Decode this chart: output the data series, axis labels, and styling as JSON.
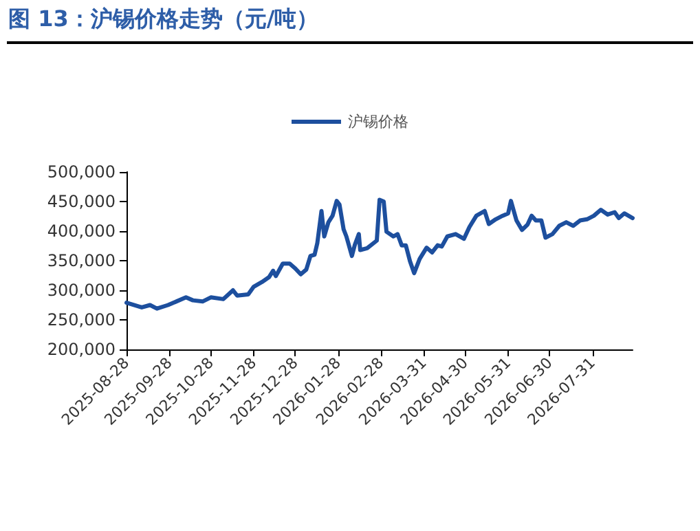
{
  "chart_data": {
    "type": "line",
    "title": "图 13：沪锡价格走势（元/吨）",
    "legend": "top",
    "grid": false,
    "marker": "none",
    "line_style": "solid",
    "xlim": [
      "2025-08-28",
      "2026-08-29"
    ],
    "xticks": [
      "2025-08-28",
      "2025-09-28",
      "2025-10-28",
      "2025-11-28",
      "2025-12-28",
      "2026-01-28",
      "2026-02-28",
      "2026-03-31",
      "2026-04-30",
      "2026-05-31",
      "2026-06-30",
      "2026-07-31"
    ],
    "ylim": [
      200000,
      500000
    ],
    "yticks": [
      {
        "value": 200000,
        "label": "200,000"
      },
      {
        "value": 250000,
        "label": "250,000"
      },
      {
        "value": 300000,
        "label": "300,000"
      },
      {
        "value": 350000,
        "label": "350,000"
      },
      {
        "value": 400000,
        "label": "400,000"
      },
      {
        "value": 450000,
        "label": "450,000"
      },
      {
        "value": 500000,
        "label": "500,000"
      }
    ],
    "x": [
      "2025-08-28",
      "2025-09-08",
      "2025-09-14",
      "2025-09-19",
      "2025-09-27",
      "2025-10-10",
      "2025-10-15",
      "2025-10-22",
      "2025-10-28",
      "2025-11-06",
      "2025-11-13",
      "2025-11-16",
      "2025-11-24",
      "2025-11-28",
      "2025-12-04",
      "2025-12-09",
      "2025-12-12",
      "2025-12-14",
      "2025-12-19",
      "2025-12-24",
      "2025-12-28",
      "2026-01-01",
      "2026-01-05",
      "2026-01-08",
      "2026-01-11",
      "2026-01-13",
      "2026-01-16",
      "2026-01-18",
      "2026-01-21",
      "2026-01-24",
      "2026-01-27",
      "2026-01-29",
      "2026-02-01",
      "2026-02-03",
      "2026-02-07",
      "2026-02-09",
      "2026-02-12",
      "2026-02-13",
      "2026-02-18",
      "2026-02-25",
      "2026-02-27",
      "2026-03-02",
      "2026-03-04",
      "2026-03-09",
      "2026-03-12",
      "2026-03-15",
      "2026-03-18",
      "2026-03-21",
      "2026-03-24",
      "2026-03-28",
      "2026-04-02",
      "2026-04-06",
      "2026-04-10",
      "2026-04-13",
      "2026-04-17",
      "2026-04-23",
      "2026-04-29",
      "2026-05-03",
      "2026-05-08",
      "2026-05-14",
      "2026-05-17",
      "2026-05-22",
      "2026-05-27",
      "2026-05-31",
      "2026-06-02",
      "2026-06-06",
      "2026-06-10",
      "2026-06-14",
      "2026-06-17",
      "2026-06-20",
      "2026-06-24",
      "2026-06-27",
      "2026-07-02",
      "2026-07-07",
      "2026-07-12",
      "2026-07-17",
      "2026-07-22",
      "2026-07-27",
      "2026-08-01",
      "2026-08-06",
      "2026-08-11",
      "2026-08-16",
      "2026-08-19",
      "2026-08-23",
      "2026-08-29"
    ],
    "series": [
      {
        "name": "沪锡价格",
        "color": "#1d4f9e",
        "values": [
          279000,
          271000,
          275000,
          269000,
          275000,
          288000,
          283000,
          281000,
          288000,
          285000,
          300000,
          291000,
          293000,
          306000,
          314000,
          322000,
          333000,
          324000,
          345000,
          345000,
          337000,
          327000,
          335000,
          358000,
          360000,
          380000,
          434000,
          391000,
          415000,
          426000,
          451000,
          445000,
          403000,
          391000,
          358000,
          376000,
          395000,
          368000,
          371000,
          384000,
          453000,
          450000,
          399000,
          391000,
          395000,
          376000,
          376000,
          349000,
          329000,
          353000,
          372000,
          364000,
          376000,
          374000,
          391000,
          395000,
          387000,
          407000,
          426000,
          434000,
          412000,
          420000,
          426000,
          430000,
          451000,
          418000,
          402000,
          411000,
          426000,
          418000,
          418000,
          389000,
          395000,
          409000,
          415000,
          409000,
          418000,
          420000,
          426000,
          436000,
          428000,
          432000,
          422000,
          430000,
          422000
        ]
      }
    ]
  }
}
